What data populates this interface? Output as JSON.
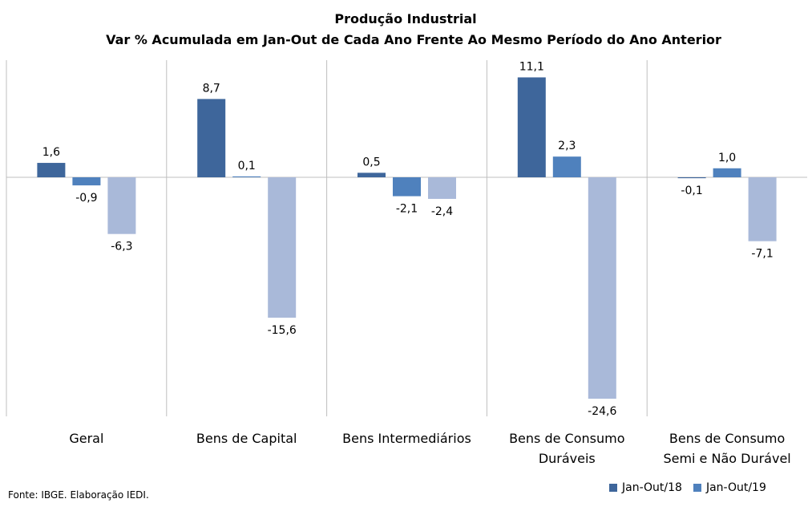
{
  "chart_data": {
    "type": "bar",
    "title": "Produção  Industrial",
    "subtitle": "Var % Acumulada  em Jan-Out  de Cada  Ano Frente Ao Mesmo  Período do Ano Anterior",
    "categories": [
      [
        "Geral"
      ],
      [
        "Bens de Capital"
      ],
      [
        "Bens Intermediários"
      ],
      [
        "Bens de Consumo",
        "Duráveis"
      ],
      [
        "Bens de Consumo",
        "Semi e Não Durável"
      ]
    ],
    "series": [
      {
        "name": "Jan-Out/18",
        "color": "#3e669b",
        "values": [
          1.6,
          8.7,
          0.5,
          11.1,
          -0.1
        ],
        "labels": [
          "1,6",
          "8,7",
          "0,5",
          "11,1",
          "-0,1"
        ]
      },
      {
        "name": "Jan-Out/19",
        "color": "#4f81bd",
        "values": [
          -0.9,
          0.1,
          -2.1,
          2.3,
          1.0
        ],
        "labels": [
          "-0,9",
          "0,1",
          "-2,1",
          "2,3",
          "1,0"
        ]
      },
      {
        "name": "",
        "color": "#a9b9d9",
        "values": [
          -6.3,
          -15.6,
          -2.4,
          -24.6,
          -7.1
        ],
        "labels": [
          "-6,3",
          "-15,6",
          "-2,4",
          "-24,6",
          "-7,1"
        ]
      }
    ],
    "legend_position": "bottom-right",
    "grid": false
  },
  "source_note": "Fonte: IBGE. Elaboração IEDI."
}
